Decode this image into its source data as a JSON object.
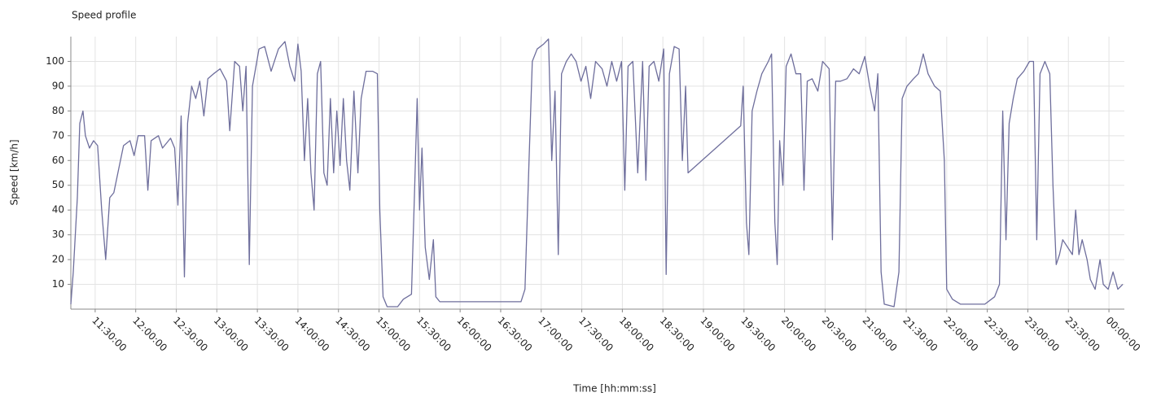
{
  "chart_data": {
    "type": "line",
    "title": "Speed profile",
    "x_label": "Time  [hh:mm:ss]",
    "y_label": "Speed [km/h]",
    "x": [
      11.2,
      11.23,
      11.28,
      11.31,
      11.35,
      11.38,
      11.43,
      11.48,
      11.53,
      11.58,
      11.63,
      11.68,
      11.73,
      11.78,
      11.85,
      11.93,
      11.98,
      12.03,
      12.11,
      12.15,
      12.19,
      12.28,
      12.33,
      12.43,
      12.48,
      12.52,
      12.56,
      12.6,
      12.64,
      12.69,
      12.74,
      12.79,
      12.84,
      12.89,
      12.96,
      13.04,
      13.12,
      13.16,
      13.22,
      13.28,
      13.32,
      13.36,
      13.4,
      13.44,
      13.52,
      13.59,
      13.67,
      13.76,
      13.84,
      13.9,
      13.96,
      14.0,
      14.04,
      14.08,
      14.12,
      14.16,
      14.2,
      14.24,
      14.28,
      14.32,
      14.36,
      14.4,
      14.44,
      14.48,
      14.52,
      14.56,
      14.6,
      14.64,
      14.69,
      14.74,
      14.78,
      14.84,
      14.92,
      14.98,
      15.01,
      15.05,
      15.1,
      15.23,
      15.3,
      15.4,
      15.44,
      15.47,
      15.5,
      15.53,
      15.57,
      15.62,
      15.67,
      15.7,
      15.75,
      16.75,
      16.8,
      16.85,
      16.89,
      16.95,
      17.03,
      17.09,
      17.13,
      17.17,
      17.21,
      17.25,
      17.31,
      17.37,
      17.43,
      17.49,
      17.55,
      17.61,
      17.67,
      17.75,
      17.81,
      17.87,
      17.93,
      17.99,
      18.03,
      18.07,
      18.13,
      18.19,
      18.25,
      18.29,
      18.33,
      18.39,
      18.45,
      18.51,
      18.54,
      18.58,
      18.64,
      18.7,
      18.74,
      18.78,
      18.81,
      19.46,
      19.49,
      19.53,
      19.56,
      19.6,
      19.66,
      19.72,
      19.8,
      19.84,
      19.88,
      19.91,
      19.94,
      19.98,
      20.02,
      20.08,
      20.14,
      20.2,
      20.24,
      20.28,
      20.34,
      20.41,
      20.47,
      20.55,
      20.59,
      20.63,
      20.69,
      20.77,
      20.85,
      20.92,
      20.99,
      21.05,
      21.11,
      21.15,
      21.19,
      21.23,
      21.35,
      21.41,
      21.45,
      21.51,
      21.59,
      21.65,
      21.71,
      21.77,
      21.85,
      21.92,
      21.97,
      22.0,
      22.07,
      22.17,
      22.47,
      22.59,
      22.65,
      22.69,
      22.73,
      22.77,
      22.82,
      22.87,
      22.95,
      23.02,
      23.07,
      23.11,
      23.15,
      23.21,
      23.27,
      23.31,
      23.35,
      23.39,
      23.43,
      23.49,
      23.55,
      23.59,
      23.63,
      23.67,
      23.73,
      23.77,
      23.83,
      23.89,
      23.93,
      23.99,
      24.05,
      24.11,
      24.17
    ],
    "series": [
      {
        "name": "Speed",
        "color": "#6e6e9c",
        "values": [
          2,
          15,
          45,
          75,
          80,
          70,
          65,
          68,
          66,
          40,
          20,
          45,
          47,
          55,
          66,
          68,
          62,
          70,
          70,
          48,
          68,
          70,
          65,
          69,
          65,
          42,
          78,
          13,
          75,
          90,
          85,
          92,
          78,
          93,
          95,
          97,
          92,
          72,
          100,
          98,
          80,
          98,
          18,
          90,
          105,
          106,
          96,
          105,
          108,
          98,
          92,
          107,
          96,
          60,
          85,
          55,
          40,
          95,
          100,
          55,
          50,
          85,
          55,
          80,
          58,
          85,
          60,
          48,
          88,
          55,
          85,
          96,
          96,
          95,
          40,
          5,
          1,
          1,
          4,
          6,
          50,
          85,
          40,
          65,
          25,
          12,
          28,
          5,
          3,
          3,
          8,
          60,
          100,
          105,
          107,
          109,
          60,
          88,
          22,
          95,
          100,
          103,
          100,
          92,
          98,
          85,
          100,
          97,
          90,
          100,
          92,
          100,
          48,
          98,
          100,
          55,
          100,
          52,
          98,
          100,
          92,
          105,
          14,
          95,
          106,
          105,
          60,
          90,
          55,
          74,
          90,
          35,
          22,
          80,
          88,
          95,
          100,
          103,
          35,
          18,
          68,
          50,
          98,
          103,
          95,
          95,
          48,
          92,
          93,
          88,
          100,
          97,
          28,
          92,
          92,
          93,
          97,
          95,
          102,
          90,
          80,
          95,
          15,
          2,
          1,
          15,
          85,
          90,
          93,
          95,
          103,
          95,
          90,
          88,
          60,
          8,
          4,
          2,
          2,
          5,
          10,
          80,
          28,
          75,
          85,
          93,
          96,
          100,
          100,
          28,
          95,
          100,
          95,
          50,
          18,
          22,
          28,
          25,
          22,
          40,
          22,
          28,
          20,
          12,
          8,
          20,
          10,
          8,
          15,
          8,
          10
        ]
      }
    ],
    "xlim": [
      11.2,
      24.19
    ],
    "ylim": [
      0,
      110
    ],
    "xticks": [
      {
        "value": 11.5,
        "label": "11:30:00"
      },
      {
        "value": 12,
        "label": "12:00:00"
      },
      {
        "value": 12.5,
        "label": "12:30:00"
      },
      {
        "value": 13,
        "label": "13:00:00"
      },
      {
        "value": 13.5,
        "label": "13:30:00"
      },
      {
        "value": 14,
        "label": "14:00:00"
      },
      {
        "value": 14.5,
        "label": "14:30:00"
      },
      {
        "value": 15,
        "label": "15:00:00"
      },
      {
        "value": 15.5,
        "label": "15:30:00"
      },
      {
        "value": 16,
        "label": "16:00:00"
      },
      {
        "value": 16.5,
        "label": "16:30:00"
      },
      {
        "value": 17,
        "label": "17:00:00"
      },
      {
        "value": 17.5,
        "label": "17:30:00"
      },
      {
        "value": 18,
        "label": "18:00:00"
      },
      {
        "value": 18.5,
        "label": "18:30:00"
      },
      {
        "value": 19,
        "label": "19:00:00"
      },
      {
        "value": 19.5,
        "label": "19:30:00"
      },
      {
        "value": 20,
        "label": "20:00:00"
      },
      {
        "value": 20.5,
        "label": "20:30:00"
      },
      {
        "value": 21,
        "label": "21:00:00"
      },
      {
        "value": 21.5,
        "label": "21:30:00"
      },
      {
        "value": 22,
        "label": "22:00:00"
      },
      {
        "value": 22.5,
        "label": "22:30:00"
      },
      {
        "value": 23,
        "label": "23:00:00"
      },
      {
        "value": 23.5,
        "label": "23:30:00"
      },
      {
        "value": 24,
        "label": "00:00:00"
      }
    ],
    "yticks": [
      10,
      20,
      30,
      40,
      50,
      60,
      70,
      80,
      90,
      100
    ],
    "grid": true
  }
}
